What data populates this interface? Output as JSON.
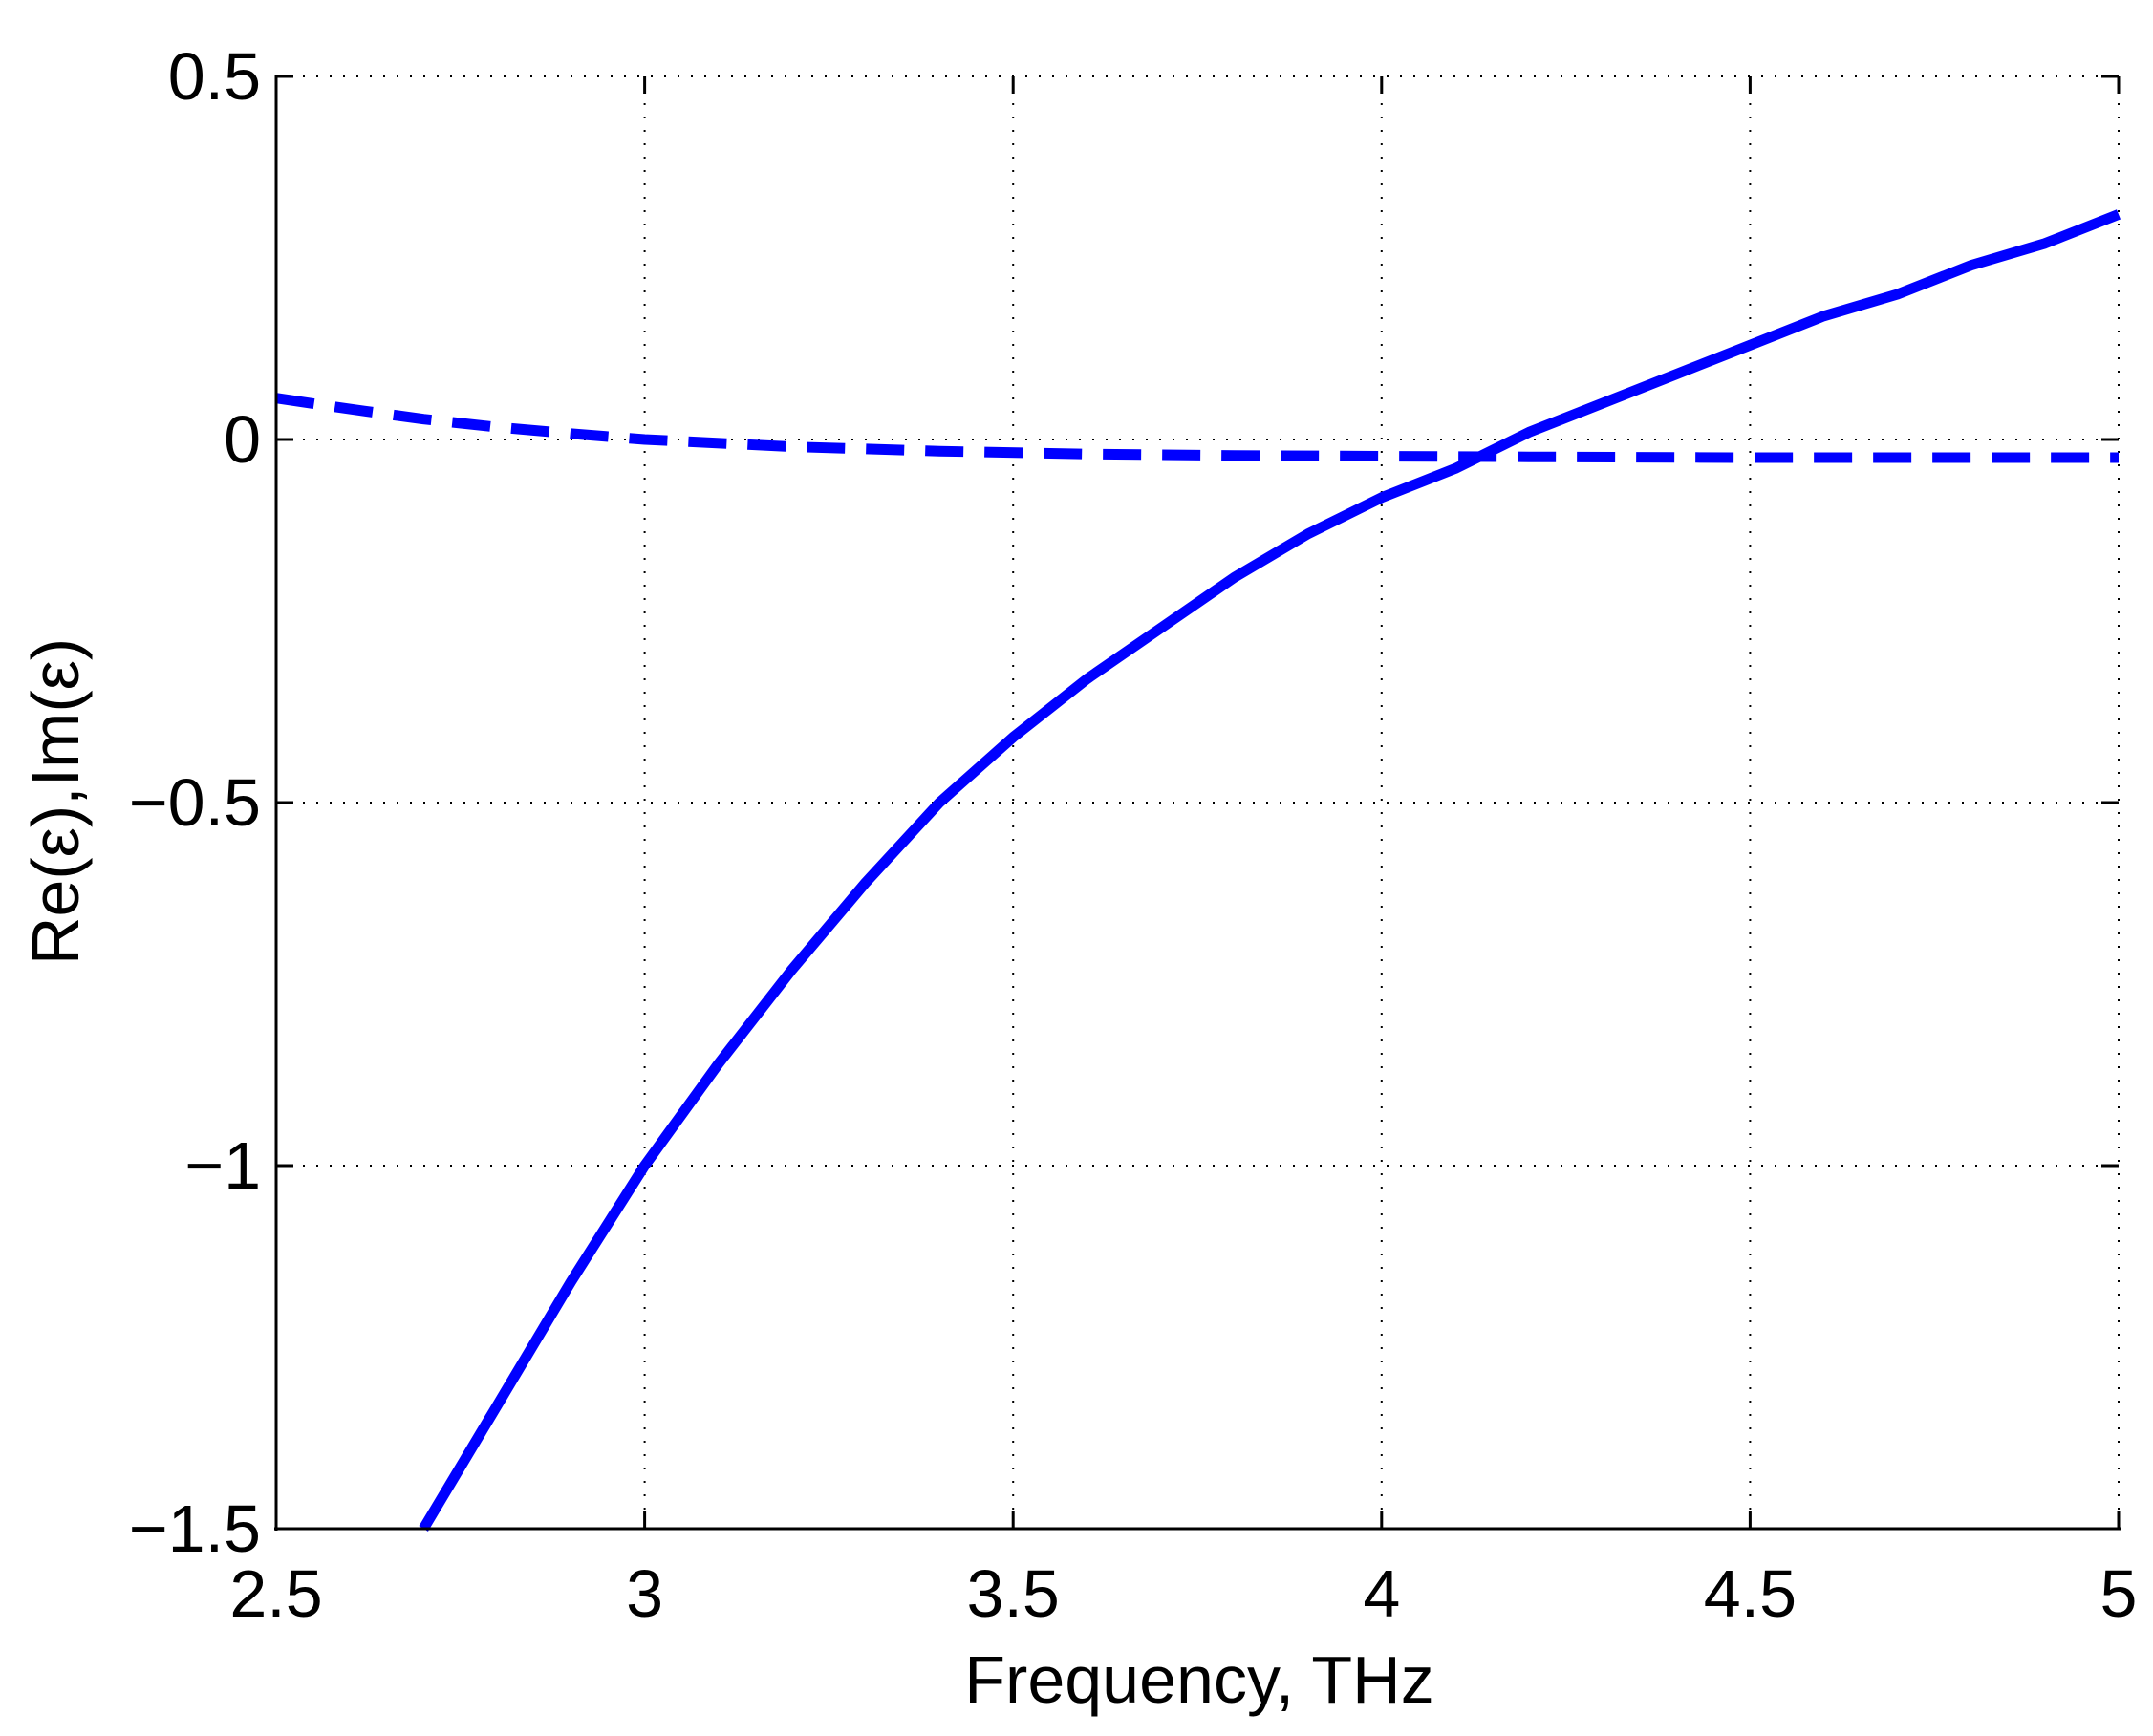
{
  "chart_data": {
    "type": "line",
    "title": "",
    "xlabel": "Frequency, THz",
    "ylabel": "Re(ε),Im(ε)",
    "xlim": [
      2.5,
      5
    ],
    "ylim": [
      -1.5,
      0.5
    ],
    "xticks": [
      2.5,
      3,
      3.5,
      4,
      4.5,
      5
    ],
    "yticks": [
      -1.5,
      -1,
      -0.5,
      0,
      0.5
    ],
    "xtick_labels": [
      "2.5",
      "3",
      "3.5",
      "4",
      "4.5",
      "5"
    ],
    "ytick_labels": [
      "−1.5",
      "−1",
      "−0.5",
      "0",
      "0.5"
    ],
    "grid": true,
    "grid_style": "dotted",
    "legend": "none",
    "series": [
      {
        "style": "solid",
        "color": "#0000ff",
        "x": [
          2.7,
          2.8,
          2.9,
          3.0,
          3.1,
          3.2,
          3.3,
          3.4,
          3.5,
          3.6,
          3.7,
          3.8,
          3.9,
          4.0,
          4.1,
          4.2,
          4.3,
          4.4,
          4.5,
          4.6,
          4.7,
          4.8,
          4.9,
          5.0
        ],
        "y": [
          -1.5,
          -1.33,
          -1.16,
          -1.0,
          -0.86,
          -0.73,
          -0.61,
          -0.5,
          -0.41,
          -0.33,
          -0.26,
          -0.19,
          -0.13,
          -0.08,
          -0.04,
          0.01,
          0.05,
          0.09,
          0.13,
          0.17,
          0.2,
          0.24,
          0.27,
          0.31
        ]
      },
      {
        "style": "dashed",
        "color": "#0000ff",
        "x": [
          2.5,
          2.6,
          2.7,
          2.8,
          2.9,
          3.0,
          3.2,
          3.4,
          3.6,
          3.8,
          4.0,
          4.2,
          4.5,
          5.0
        ],
        "y": [
          0.057,
          0.042,
          0.028,
          0.017,
          0.008,
          0.0,
          -0.01,
          -0.016,
          -0.02,
          -0.022,
          -0.023,
          -0.024,
          -0.025,
          -0.025
        ]
      }
    ]
  }
}
